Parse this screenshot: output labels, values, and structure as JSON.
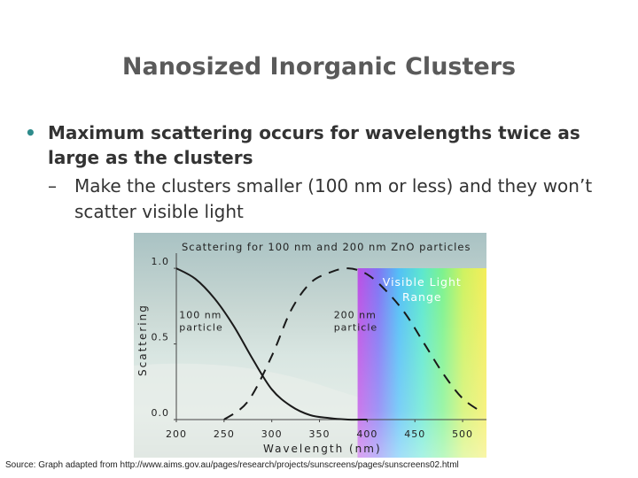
{
  "slide": {
    "title": "Nanosized Inorganic Clusters",
    "bullet_1": "Maximum scattering occurs for wavelengths twice as large as the clusters",
    "bullet_1_marker": "•",
    "bullet_2": "Make the clusters smaller (100 nm or less) and they won’t scatter visible light",
    "bullet_2_marker": "–",
    "source": "Source: Graph adapted from http://www.aims.gov.au/pages/research/projects/sunscreens/pages/sunscreens02.html"
  },
  "colors": {
    "title": "#5a5a5a",
    "bullet_marker": "#2e8b8b",
    "curve": "#1a1a1a"
  },
  "chart_data": {
    "type": "line",
    "title": "Scattering for 100 nm and 200 nm ZnO particles",
    "xlabel": "Wavelength (nm)",
    "ylabel": "Scattering",
    "xlim": [
      200,
      525
    ],
    "ylim": [
      0,
      1.1
    ],
    "xticks": [
      200,
      250,
      300,
      350,
      400,
      450,
      500
    ],
    "yticks": [
      {
        "value": 1.0,
        "label": "1.0"
      },
      {
        "value": 0.5,
        "label": "0.5"
      },
      {
        "value": 0.0,
        "label": "0.0"
      }
    ],
    "grid": false,
    "band": {
      "label_line1": "Visible Light",
      "label_line2": "Range",
      "x_start": 390,
      "x_end": 525
    },
    "series": [
      {
        "name": "100 nm particle",
        "label_line1": "100 nm",
        "label_line2": "particle",
        "style": "solid",
        "label_at": {
          "x": 203,
          "y": 0.67
        },
        "x": [
          200,
          220,
          240,
          260,
          280,
          300,
          320,
          340,
          360,
          380,
          400
        ],
        "y": [
          1.0,
          0.93,
          0.8,
          0.62,
          0.4,
          0.2,
          0.09,
          0.03,
          0.01,
          0.0,
          0.0
        ]
      },
      {
        "name": "200 nm particle",
        "label_line1": "200 nm",
        "label_line2": "particle",
        "style": "dashed",
        "label_at": {
          "x": 365,
          "y": 0.67
        },
        "x": [
          250,
          275,
          300,
          320,
          340,
          360,
          380,
          400,
          420,
          440,
          460,
          480,
          500,
          520
        ],
        "y": [
          0.0,
          0.12,
          0.42,
          0.72,
          0.9,
          0.97,
          1.0,
          0.96,
          0.85,
          0.7,
          0.5,
          0.3,
          0.14,
          0.05
        ]
      }
    ]
  }
}
